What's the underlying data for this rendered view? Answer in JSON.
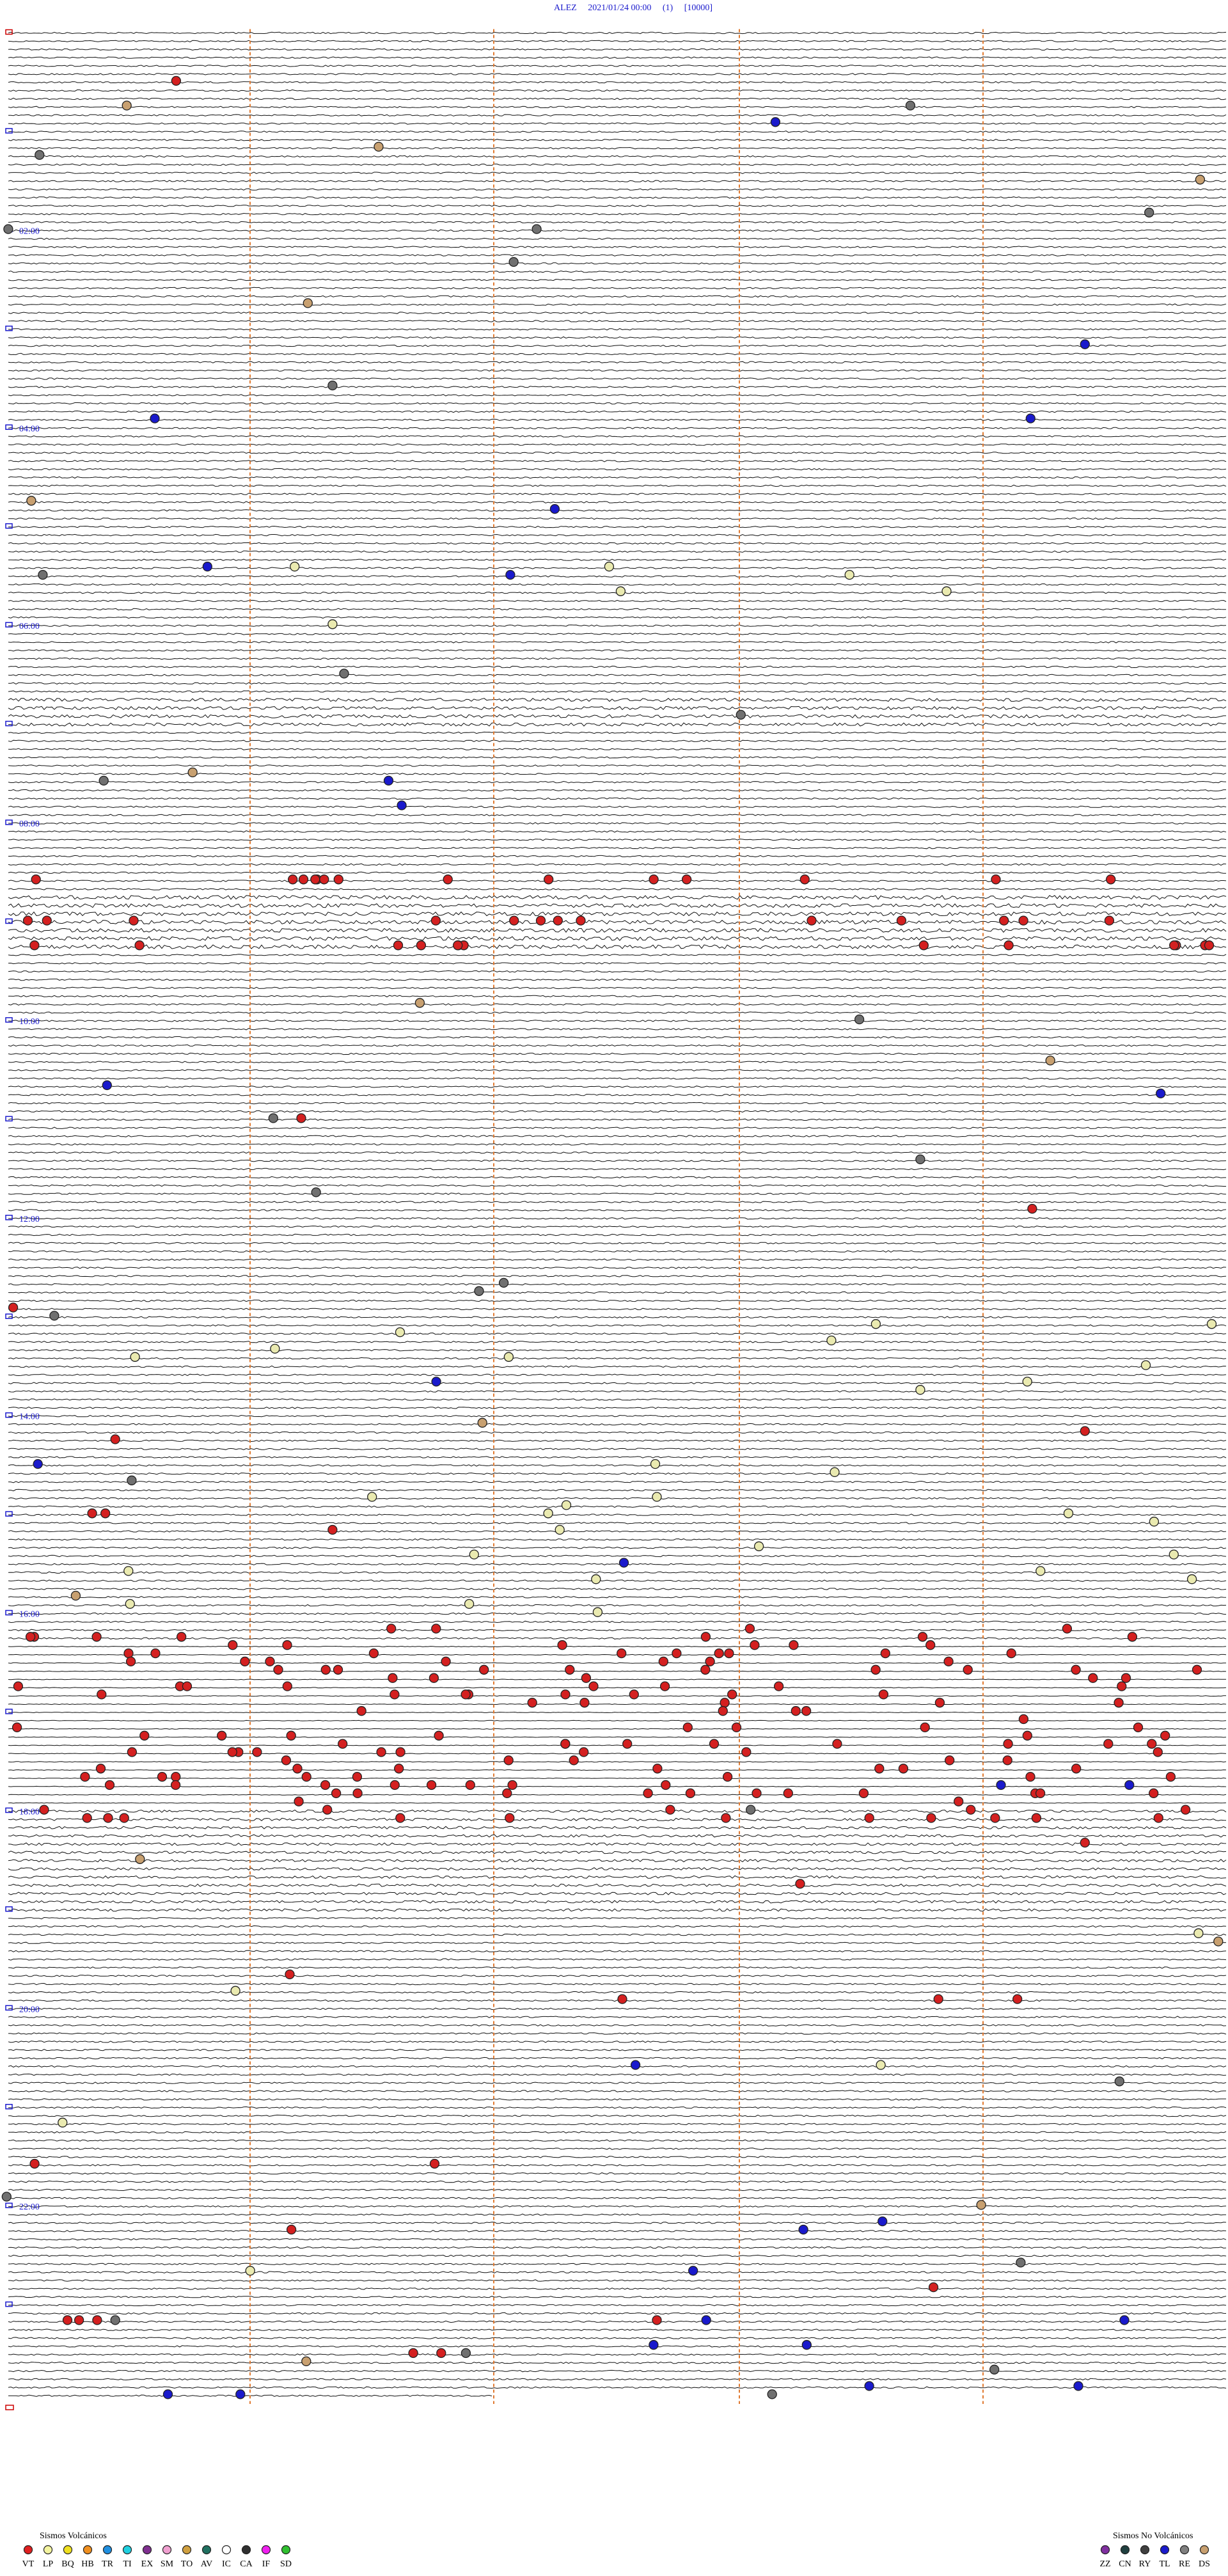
{
  "header": {
    "title": "ALEZ     2021/01/24 00:00     (1)     [10000]"
  },
  "hour_labels": [
    "02:00",
    "04:00",
    "06:00",
    "08:00",
    "10:00",
    "12:00",
    "14:00",
    "16:00",
    "18:00",
    "20:00",
    "22:00"
  ],
  "legend": {
    "volcanic": {
      "title": "Sismos Volcánicos",
      "items": [
        {
          "code": "VT",
          "color": "#e02020"
        },
        {
          "code": "LP",
          "color": "#f4f4a0"
        },
        {
          "code": "BQ",
          "color": "#f0e020"
        },
        {
          "code": "HB",
          "color": "#f09020"
        },
        {
          "code": "TR",
          "color": "#2090e0"
        },
        {
          "code": "TI",
          "color": "#20d0e0"
        },
        {
          "code": "EX",
          "color": "#803090"
        },
        {
          "code": "SM",
          "color": "#f0a0d0"
        },
        {
          "code": "TO",
          "color": "#d0a040"
        },
        {
          "code": "AV",
          "color": "#207060"
        },
        {
          "code": "IC",
          "color": "#ffffff"
        },
        {
          "code": "CA",
          "color": "#303030"
        },
        {
          "code": "IF",
          "color": "#f020f0"
        },
        {
          "code": "SD",
          "color": "#30c030"
        }
      ]
    },
    "non_volcanic": {
      "title": "Sismos No Volcánicos",
      "items": [
        {
          "code": "ZZ",
          "color": "#8030a0"
        },
        {
          "code": "CN",
          "color": "#204040"
        },
        {
          "code": "RY",
          "color": "#404040"
        },
        {
          "code": "TL",
          "color": "#1a1acc"
        },
        {
          "code": "RE",
          "color": "#808080"
        },
        {
          "code": "DS",
          "color": "#c8a070"
        }
      ]
    }
  }
}
